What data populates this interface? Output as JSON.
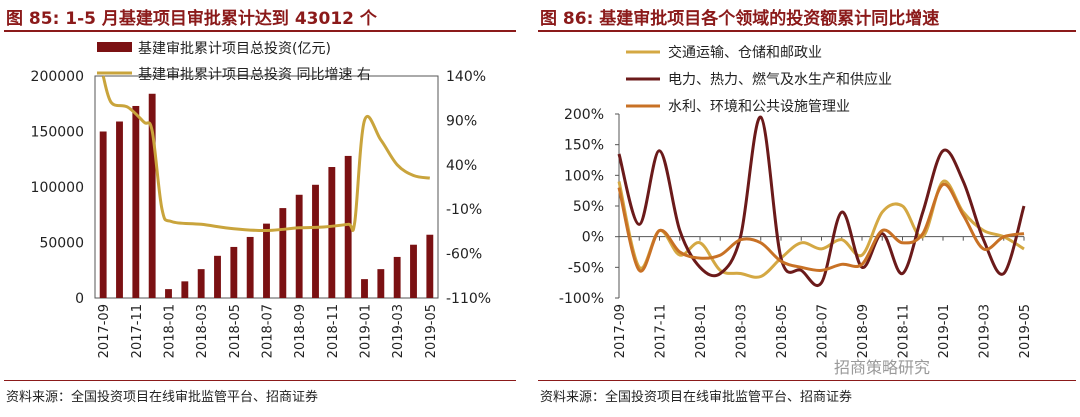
{
  "watermark": "招商策略研究",
  "chart_data": [
    {
      "type": "bar",
      "title": "图 85:  1-5 月基建项目审批累计达到 43012 个",
      "source": "资料来源：全国投资项目在线审批监管平台、招商证券",
      "categories": [
        "2017-09",
        "2017-10",
        "2017-11",
        "2017-12",
        "2018-01",
        "2018-02",
        "2018-03",
        "2018-04",
        "2018-05",
        "2018-06",
        "2018-07",
        "2018-08",
        "2018-09",
        "2018-10",
        "2018-11",
        "2018-12",
        "2019-01",
        "2019-02",
        "2019-03",
        "2019-04",
        "2019-05"
      ],
      "x_tick_labels": [
        "2017-09",
        "2017-11",
        "2018-01",
        "2018-03",
        "2018-05",
        "2018-07",
        "2018-09",
        "2018-11",
        "2019-01",
        "2019-03",
        "2019-05"
      ],
      "ylim_left": [
        0,
        200000
      ],
      "yticks_left": [
        "0",
        "50000",
        "100000",
        "150000",
        "200000"
      ],
      "ylim_right": [
        -110,
        140
      ],
      "yticks_right": [
        "-110%",
        "-60%",
        "-10%",
        "40%",
        "90%",
        "140%"
      ],
      "series": [
        {
          "name": "基建审批累计项目总投资(亿元)",
          "type": "bar",
          "axis": "left",
          "color": "#7b1113",
          "values": [
            150000,
            159000,
            173000,
            184000,
            8000,
            15000,
            26000,
            38000,
            46000,
            55000,
            67000,
            81000,
            93000,
            102000,
            118000,
            128000,
            17000,
            26000,
            37000,
            48000,
            57000
          ]
        },
        {
          "name": "基建审批累计项目总投资  同比增速  右",
          "type": "line",
          "axis": "right",
          "color": "#c9a43c",
          "points": [
            [
              0,
              140
            ],
            [
              0.5,
              110
            ],
            [
              1.5,
              105
            ],
            [
              2.5,
              88
            ],
            [
              3,
              78
            ],
            [
              3.6,
              -10
            ],
            [
              4.2,
              -24
            ],
            [
              6,
              -27
            ],
            [
              8,
              -32
            ],
            [
              10,
              -34
            ],
            [
              12,
              -31
            ],
            [
              13.5,
              -30
            ],
            [
              15,
              -27
            ],
            [
              15.4,
              -25
            ],
            [
              16,
              90
            ],
            [
              17,
              68
            ],
            [
              18,
              40
            ],
            [
              19,
              28
            ],
            [
              20,
              25
            ]
          ]
        }
      ]
    },
    {
      "type": "line",
      "title": "图 86:  基建审批项目各个领域的投资额累计同比增速",
      "source": "资料来源：全国投资项目在线审批监管平台、招商证券",
      "categories": [
        "2017-09",
        "2017-10",
        "2017-11",
        "2017-12",
        "2018-01",
        "2018-02",
        "2018-03",
        "2018-04",
        "2018-05",
        "2018-06",
        "2018-07",
        "2018-08",
        "2018-09",
        "2018-10",
        "2018-11",
        "2018-12",
        "2019-01",
        "2019-02",
        "2019-03",
        "2019-04",
        "2019-05"
      ],
      "x_tick_labels": [
        "2017-09",
        "2017-11",
        "2018-01",
        "2018-03",
        "2018-05",
        "2018-07",
        "2018-09",
        "2018-11",
        "2019-01",
        "2019-03",
        "2019-05"
      ],
      "ylim": [
        -100,
        200
      ],
      "yticks": [
        "-100%",
        "-50%",
        "0%",
        "50%",
        "100%",
        "150%",
        "200%"
      ],
      "series": [
        {
          "name": "交通运输、仓储和邮政业",
          "color": "#d4a843",
          "values": [
            90,
            -50,
            10,
            -30,
            -10,
            -55,
            -60,
            -65,
            -35,
            -10,
            -20,
            -5,
            -30,
            40,
            50,
            0,
            90,
            40,
            10,
            0,
            -20
          ]
        },
        {
          "name": "电力、热力、燃气及水生产和供应业",
          "color": "#6b1a1a",
          "values": [
            135,
            20,
            140,
            10,
            -50,
            -60,
            0,
            195,
            -35,
            -55,
            -75,
            40,
            -50,
            5,
            -60,
            40,
            140,
            90,
            -5,
            -60,
            50
          ]
        },
        {
          "name": "水利、环境和公共设施管理业",
          "color": "#c87125",
          "values": [
            80,
            -55,
            10,
            -25,
            -35,
            -30,
            -5,
            -10,
            -40,
            -50,
            -55,
            -45,
            -45,
            10,
            -10,
            5,
            85,
            35,
            -20,
            0,
            5
          ]
        }
      ]
    }
  ]
}
